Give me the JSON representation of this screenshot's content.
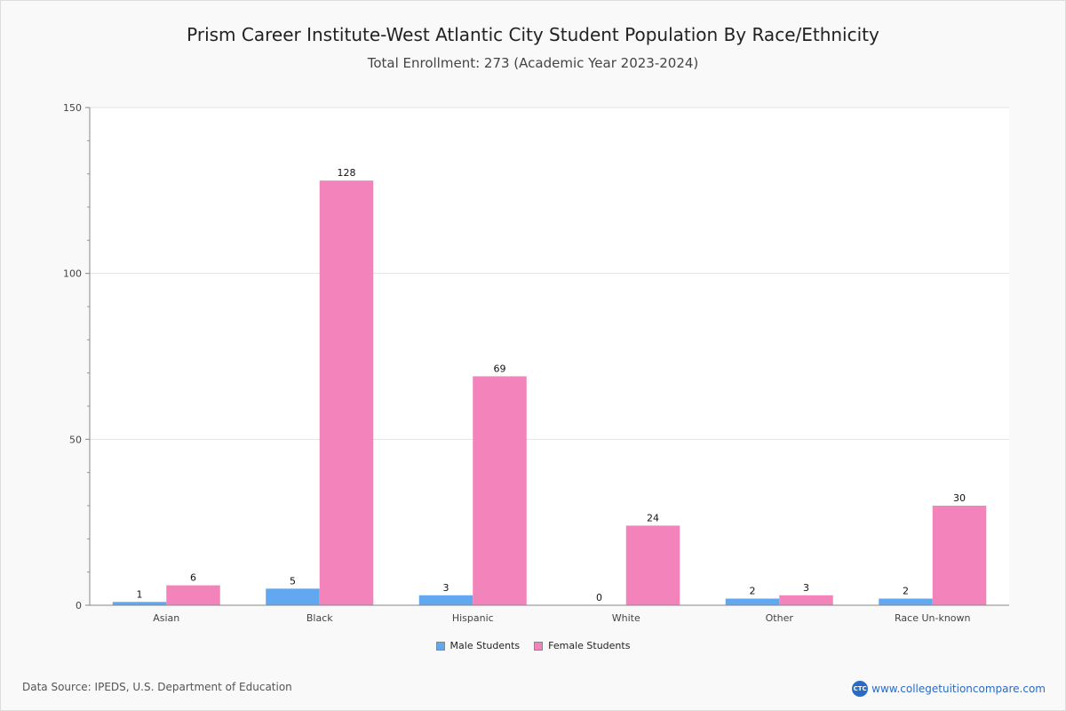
{
  "chart_data": {
    "type": "bar",
    "title": "Prism Career Institute-West Atlantic City Student Population By Race/Ethnicity",
    "subtitle": "Total Enrollment: 273 (Academic Year 2023-2024)",
    "categories": [
      "Asian",
      "Black",
      "Hispanic",
      "White",
      "Other",
      "Race Un-known"
    ],
    "series": [
      {
        "name": "Male Students",
        "color": "#62a8f0",
        "values": [
          1,
          5,
          3,
          0,
          2,
          2
        ]
      },
      {
        "name": "Female Students",
        "color": "#f283bb",
        "values": [
          6,
          128,
          69,
          24,
          3,
          30
        ]
      }
    ],
    "ylim": [
      0,
      150
    ],
    "yticks": [
      0,
      50,
      100,
      150
    ],
    "grid": true,
    "legend": "bottom-center"
  },
  "footer": {
    "source": "Data Source: IPEDS, U.S. Department of Education",
    "brand": "www.collegetuitioncompare.com",
    "logo_text": "CTC"
  }
}
